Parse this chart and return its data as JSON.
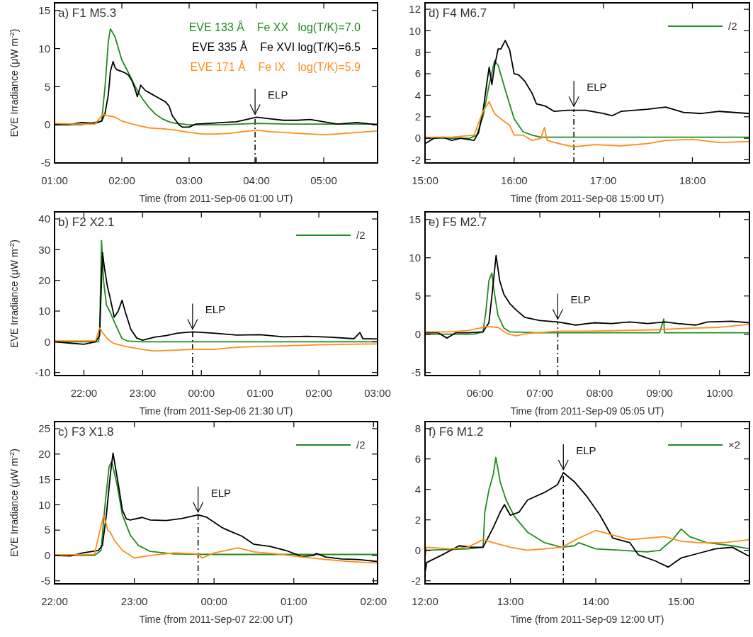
{
  "chart_data": [
    {
      "type": "line",
      "title": "a)  F1 M5.3",
      "xlabel": "Time (from 2011-Sep-06 01:00 UT)",
      "ylabel": "EVE Irradiance (μW m$^{-2}$)",
      "xlim": [
        1,
        5.8
      ],
      "xticks": [
        {
          "value": 1,
          "label": "01:00"
        },
        {
          "value": 2,
          "label": "02:00"
        },
        {
          "value": 3,
          "label": "03:00"
        },
        {
          "value": 4,
          "label": "04:00"
        },
        {
          "value": 5,
          "label": "05:00"
        }
      ],
      "ylim": [
        -5,
        16
      ],
      "yticks": [
        -5,
        0,
        5,
        10,
        15
      ],
      "legend": "top right",
      "grid": false,
      "series": [
        {
          "name": "EVE 133 Å    Fe XX   log(T/K)=7.0",
          "color": "#1e8c1e",
          "x": [
            1,
            1.4,
            1.7,
            1.75,
            1.8,
            1.83,
            1.9,
            2,
            2.1,
            2.2,
            2.3,
            2.4,
            2.5,
            2.6,
            2.7,
            2.8,
            3,
            3.5,
            4,
            4.5,
            5,
            5.8
          ],
          "values": [
            0,
            0,
            0.5,
            5,
            11,
            12.6,
            11.5,
            8.5,
            6.8,
            5,
            3.5,
            2.3,
            1.4,
            0.8,
            0.4,
            0.2,
            0,
            0,
            0.2,
            0.1,
            0.1,
            0.1
          ]
        },
        {
          "name": "EVE 335 Å    Fe XVI log(T/K)=6.5",
          "color": "#000000",
          "x": [
            1,
            1.2,
            1.4,
            1.6,
            1.7,
            1.75,
            1.8,
            1.83,
            1.87,
            1.9,
            1.93,
            2,
            2.05,
            2.1,
            2.15,
            2.2,
            2.23,
            2.28,
            2.35,
            2.45,
            2.55,
            2.65,
            2.7,
            2.75,
            2.8,
            2.85,
            2.9,
            3,
            3.1,
            3.3,
            3.5,
            3.7,
            3.9,
            4,
            4.2,
            4.4,
            4.6,
            4.8,
            5,
            5.2,
            5.5,
            5.8
          ],
          "values": [
            0,
            0,
            0.3,
            0.2,
            0.5,
            1.5,
            4,
            7,
            8.3,
            7.5,
            7.2,
            7,
            6.8,
            6.5,
            5.8,
            4.6,
            3.7,
            5.2,
            4.5,
            4,
            3.5,
            3,
            2.5,
            1.2,
            0.6,
            0,
            -0.3,
            -0.3,
            0.1,
            0.2,
            0.3,
            0.4,
            0.8,
            1,
            0.8,
            0.6,
            0.6,
            0.7,
            0.4,
            0.1,
            0.3,
            0
          ]
        },
        {
          "name": "EVE 171 Å    Fe IX    log(T/K)=5.9",
          "color": "#ff8c1a",
          "x": [
            1,
            1.3,
            1.6,
            1.72,
            1.8,
            1.9,
            2,
            2.2,
            2.4,
            2.6,
            2.8,
            3,
            3.2,
            3.4,
            3.6,
            3.8,
            4,
            4.2,
            4.4,
            4.6,
            4.8,
            5,
            5.2,
            5.5,
            5.8
          ],
          "values": [
            0.2,
            0.1,
            0.1,
            1.4,
            1.2,
            1,
            0.5,
            0,
            -0.4,
            -0.5,
            -0.7,
            -1,
            -1.2,
            -1.2,
            -1.1,
            -0.9,
            -0.7,
            -0.9,
            -1,
            -1.1,
            -1.2,
            -1.3,
            -1.2,
            -1,
            -0.8
          ]
        }
      ],
      "annotations": [
        {
          "text": "ELP",
          "x": 3.98,
          "y": 1.0
        }
      ],
      "ref_lines": [
        {
          "axis": "x",
          "value": 3.98,
          "line_style": "dashed",
          "color": "#000000"
        }
      ]
    },
    {
      "type": "line",
      "title": "d)  F4 M6.7",
      "xlabel": "Time (from 2011-Sep-08 15:00 UT)",
      "xlim": [
        15,
        18.64
      ],
      "xticks": [
        {
          "value": 15,
          "label": "15:00"
        },
        {
          "value": 16,
          "label": "16:00"
        },
        {
          "value": 17,
          "label": "17:00"
        },
        {
          "value": 18,
          "label": "18:00"
        }
      ],
      "ylim": [
        -2.3,
        12.6
      ],
      "yticks": [
        -2,
        0,
        2,
        4,
        6,
        8,
        10,
        12
      ],
      "legend": "top right",
      "grid": false,
      "series": [
        {
          "name": "/2",
          "color": "#1e8c1e",
          "x": [
            15,
            15.5,
            15.58,
            15.65,
            15.72,
            15.78,
            15.82,
            15.9,
            16,
            16.1,
            16.2,
            16.3,
            17,
            18,
            18.64
          ],
          "values": [
            0,
            0,
            0.3,
            2,
            5,
            7.2,
            6.8,
            4.5,
            1.8,
            0.6,
            0.3,
            0.1,
            0.1,
            0.1,
            0.1
          ]
        },
        {
          "color": "#000000",
          "x": [
            15,
            15.1,
            15.2,
            15.3,
            15.4,
            15.55,
            15.6,
            15.65,
            15.7,
            15.72,
            15.75,
            15.78,
            15.82,
            15.85,
            15.9,
            15.95,
            16,
            16.05,
            16.12,
            16.2,
            16.25,
            16.35,
            16.45,
            16.6,
            16.8,
            17,
            17.1,
            17.2,
            17.5,
            17.7,
            17.9,
            18.1,
            18.3,
            18.64
          ],
          "values": [
            -0.5,
            0,
            0.1,
            -0.2,
            0,
            -0.2,
            0.5,
            2.5,
            5.5,
            6.6,
            5,
            6.7,
            8.3,
            8.3,
            9.1,
            8.2,
            6,
            5.9,
            5.3,
            4.2,
            3.2,
            3,
            2.5,
            2.6,
            2.6,
            2.3,
            2.1,
            2.5,
            2.7,
            2.9,
            2.4,
            2.3,
            2.5,
            2.3
          ]
        },
        {
          "color": "#ff8c1a",
          "x": [
            15,
            15.3,
            15.55,
            15.65,
            15.72,
            15.78,
            15.85,
            15.95,
            16,
            16.1,
            16.2,
            16.3,
            16.34,
            16.37,
            16.5,
            16.67,
            16.9,
            17.2,
            17.5,
            17.7,
            18,
            18.3,
            18.64
          ],
          "values": [
            0.1,
            0.1,
            0.3,
            2.5,
            3.4,
            2.3,
            1.8,
            1.2,
            0.3,
            0.3,
            -0.2,
            0,
            1,
            -0.2,
            -0.5,
            -0.8,
            -0.6,
            -0.7,
            -0.5,
            -0.2,
            -0.1,
            -0.4,
            -0.3
          ]
        }
      ],
      "annotations": [
        {
          "text": "ELP",
          "x": 16.67,
          "y": 2.7
        }
      ],
      "ref_lines": [
        {
          "axis": "x",
          "value": 16.67,
          "line_style": "dashed",
          "color": "#000000"
        }
      ]
    },
    {
      "type": "line",
      "title": "b)  F2 X2.1",
      "xlabel": "Time (from 2011-Sep-06 21:30 UT)",
      "ylabel": "EVE Irradiance (μW m$^{-2}$)",
      "xlim": [
        "2011-09-06T21:30",
        "2011-09-07T03:00"
      ],
      "xticks": [
        {
          "value": "2011-09-06T22:00",
          "label": "22:00"
        },
        {
          "value": "2011-09-06T23:00",
          "label": "23:00"
        },
        {
          "value": "2011-09-07T00:00",
          "label": "00:00"
        },
        {
          "value": "2011-09-07T01:00",
          "label": "01:00"
        },
        {
          "value": "2011-09-07T02:00",
          "label": "02:00"
        },
        {
          "value": "2011-09-07T03:00",
          "label": "03:00"
        }
      ],
      "ylim": [
        -11,
        42.3
      ],
      "yticks": [
        -10,
        0,
        10,
        20,
        30,
        40
      ],
      "legend": "top right",
      "grid": false,
      "series": [
        {
          "name": "/2",
          "color": "#1e8c1e",
          "x": [
            "2011-09-06T21:30",
            "2011-09-06T22:06",
            "2011-09-06T22:15",
            "2011-09-06T22:16",
            "2011-09-06T22:18",
            "2011-09-06T22:20",
            "2011-09-06T22:23",
            "2011-09-06T22:27",
            "2011-09-06T22:31",
            "2011-09-06T22:36",
            "2011-09-06T22:39",
            "2011-09-06T22:45",
            "2011-09-06T23:00",
            "2011-09-07T00:00",
            "2011-09-07T03:00"
          ],
          "values": [
            0,
            0,
            0,
            3,
            33,
            20,
            12,
            9.5,
            6.5,
            3,
            1,
            0.2,
            0,
            0,
            0
          ]
        },
        {
          "color": "#000000",
          "x": [
            "2011-09-06T21:30",
            "2011-09-06T21:48",
            "2011-09-06T22:00",
            "2011-09-06T22:12",
            "2011-09-06T22:16",
            "2011-09-06T22:19",
            "2011-09-06T22:21",
            "2011-09-06T22:24",
            "2011-09-06T22:27",
            "2011-09-06T22:31",
            "2011-09-06T22:35",
            "2011-09-06T22:39",
            "2011-09-06T22:42",
            "2011-09-06T22:48",
            "2011-09-06T22:54",
            "2011-09-06T23:00",
            "2011-09-06T23:12",
            "2011-09-06T23:24",
            "2011-09-06T23:36",
            "2011-09-06T23:51",
            "2011-09-07T00:12",
            "2011-09-07T00:36",
            "2011-09-07T01:00",
            "2011-09-07T01:24",
            "2011-09-07T01:48",
            "2011-09-07T02:12",
            "2011-09-07T02:36",
            "2011-09-07T02:42",
            "2011-09-07T02:45",
            "2011-09-07T03:00"
          ],
          "values": [
            0,
            -0.5,
            -0.8,
            0,
            2,
            29,
            24,
            18,
            14,
            8,
            10,
            13.5,
            10,
            4,
            1.2,
            0.5,
            1.5,
            2,
            2.8,
            3.2,
            2.8,
            2.2,
            2.3,
            1.6,
            1.8,
            1.5,
            1,
            3,
            1,
            0.9
          ]
        },
        {
          "color": "#ff8c1a",
          "x": [
            "2011-09-06T21:30",
            "2011-09-06T22:12",
            "2011-09-06T22:16",
            "2011-09-06T22:19",
            "2011-09-06T22:24",
            "2011-09-06T22:30",
            "2011-09-06T22:42",
            "2011-09-06T23:00",
            "2011-09-06T23:12",
            "2011-09-06T23:30",
            "2011-09-06T23:51",
            "2011-09-07T00:12",
            "2011-09-07T00:36",
            "2011-09-07T01:00",
            "2011-09-07T01:30",
            "2011-09-07T02:00",
            "2011-09-07T02:30",
            "2011-09-07T03:00"
          ],
          "values": [
            0.3,
            0.3,
            4.5,
            3,
            1,
            -0.5,
            -1.5,
            -2.5,
            -3,
            -2.8,
            -2.5,
            -2.5,
            -1.8,
            -1.5,
            -1.3,
            -1,
            -0.8,
            -0.7
          ]
        }
      ],
      "annotations": [
        {
          "text": "ELP",
          "x": "2011-09-06T23:51",
          "y": 3.2
        }
      ],
      "ref_lines": [
        {
          "axis": "x",
          "value": "2011-09-06T23:51",
          "line_style": "dashed",
          "color": "#000000"
        }
      ]
    },
    {
      "type": "line",
      "title": "e)  F5 M2.7",
      "xlabel": "Time (from 2011-Sep-09 05:05 UT)",
      "xlim": [
        5.0833,
        10.5
      ],
      "xticks": [
        {
          "value": 6,
          "label": "06:00"
        },
        {
          "value": 7,
          "label": "07:00"
        },
        {
          "value": 8,
          "label": "08:00"
        },
        {
          "value": 9,
          "label": "09:00"
        },
        {
          "value": 10,
          "label": "10:00"
        }
      ],
      "ylim": [
        -5.4,
        16
      ],
      "yticks": [
        -5,
        0,
        5,
        10,
        15
      ],
      "grid": false,
      "series": [
        {
          "color": "#1e8c1e",
          "x": [
            5.0833,
            5.9,
            6.05,
            6.1,
            6.15,
            6.2,
            6.23,
            6.3,
            6.4,
            6.5,
            7,
            8,
            9,
            9.07,
            9.08,
            10.5
          ],
          "values": [
            0,
            0,
            0.3,
            3,
            7,
            8,
            6,
            2.5,
            0.8,
            0.3,
            0.2,
            0.2,
            0.2,
            2,
            0.2,
            0.2
          ]
        },
        {
          "color": "#000000",
          "x": [
            5.0833,
            5.3,
            5.45,
            5.6,
            5.8,
            6.05,
            6.15,
            6.2,
            6.27,
            6.33,
            6.4,
            6.5,
            6.6,
            6.75,
            7,
            7.3,
            7.6,
            7.9,
            8.2,
            8.5,
            8.8,
            9.1,
            9.3,
            9.6,
            9.8,
            10.2,
            10.5
          ],
          "values": [
            0.2,
            0.2,
            -0.5,
            0.2,
            0.2,
            0.3,
            1.5,
            5,
            10.3,
            7,
            5.2,
            4,
            3.2,
            2.2,
            1.8,
            1.6,
            1.2,
            1.5,
            1.4,
            1.6,
            1.4,
            1.6,
            1.4,
            1.2,
            1.6,
            1.7,
            1.5
          ]
        },
        {
          "color": "#ff8c1a",
          "x": [
            5.0833,
            5.5,
            5.8,
            6,
            6.1,
            6.3,
            6.45,
            6.6,
            6.8,
            7.3,
            7.8,
            8.4,
            9,
            9.5,
            10,
            10.5
          ],
          "values": [
            0.3,
            0.3,
            0.5,
            0.8,
            1,
            0.9,
            0.1,
            -0.2,
            0.1,
            0.4,
            0.4,
            0.5,
            0.6,
            0.8,
            0.9,
            1.3
          ]
        }
      ],
      "annotations": [
        {
          "text": "ELP",
          "x": 7.3,
          "y": 1.6
        }
      ],
      "ref_lines": [
        {
          "axis": "x",
          "value": 7.3,
          "line_style": "dashed",
          "color": "#000000"
        }
      ]
    },
    {
      "type": "line",
      "title": "c)  F3 X1.8",
      "xlabel": "Time (from 2011-Sep-07 22:00 UT)",
      "ylabel": "EVE Irradiance (μW m$^{-2}$)",
      "xlim": [
        "2011-09-07T22:00",
        "2011-09-08T02:03"
      ],
      "xticks": [
        {
          "value": "2011-09-07T22:00",
          "label": "22:00"
        },
        {
          "value": "2011-09-07T23:00",
          "label": "23:00"
        },
        {
          "value": "2011-09-08T00:00",
          "label": "00:00"
        },
        {
          "value": "2011-09-08T01:00",
          "label": "01:00"
        },
        {
          "value": "2011-09-08T02:00",
          "label": "02:00"
        }
      ],
      "ylim": [
        -5.6,
        26.4
      ],
      "yticks": [
        -5,
        0,
        5,
        10,
        15,
        20,
        25
      ],
      "legend": "top right",
      "grid": false,
      "series": [
        {
          "name": "/2",
          "color": "#1e8c1e",
          "x": [
            "2011-09-07T22:00",
            "2011-09-07T22:30",
            "2011-09-07T22:35",
            "2011-09-07T22:38",
            "2011-09-07T22:41",
            "2011-09-07T22:43",
            "2011-09-07T22:47",
            "2011-09-07T22:51",
            "2011-09-07T22:57",
            "2011-09-07T23:03",
            "2011-09-07T23:12",
            "2011-09-07T23:30",
            "2011-09-08T00:00",
            "2011-09-08T02:03"
          ],
          "values": [
            0,
            0,
            1,
            10,
            17.5,
            18.5,
            14,
            8,
            4,
            2,
            0.8,
            0.3,
            0.2,
            0.2
          ]
        },
        {
          "color": "#000000",
          "x": [
            "2011-09-07T22:00",
            "2011-09-07T22:12",
            "2011-09-07T22:21",
            "2011-09-07T22:33",
            "2011-09-07T22:36",
            "2011-09-07T22:39",
            "2011-09-07T22:42",
            "2011-09-07T22:44",
            "2011-09-07T22:48",
            "2011-09-07T22:51",
            "2011-09-07T22:54",
            "2011-09-07T22:57",
            "2011-09-07T23:06",
            "2011-09-07T23:12",
            "2011-09-07T23:24",
            "2011-09-07T23:36",
            "2011-09-07T23:48",
            "2011-09-07T23:54",
            "2011-09-08T00:06",
            "2011-09-08T00:12",
            "2011-09-08T00:21",
            "2011-09-08T00:30",
            "2011-09-08T00:42",
            "2011-09-08T00:54",
            "2011-09-08T01:06",
            "2011-09-08T01:15",
            "2011-09-08T01:17",
            "2011-09-08T01:24",
            "2011-09-08T01:36",
            "2011-09-08T01:48",
            "2011-09-08T02:03"
          ],
          "values": [
            0,
            -0.1,
            0.5,
            1,
            2,
            8,
            16,
            20.2,
            14,
            9,
            7.2,
            7,
            7.5,
            7,
            6.9,
            7.3,
            8,
            7.6,
            5.5,
            4.8,
            3.8,
            2.2,
            1.8,
            1,
            -0.2,
            0,
            0.4,
            -0.3,
            -0.7,
            -0.8,
            -1.2
          ]
        },
        {
          "color": "#ff8c1a",
          "x": [
            "2011-09-07T22:00",
            "2011-09-07T22:30",
            "2011-09-07T22:37",
            "2011-09-07T22:40",
            "2011-09-07T22:42",
            "2011-09-07T22:45",
            "2011-09-07T22:51",
            "2011-09-07T23:00",
            "2011-09-07T23:12",
            "2011-09-07T23:30",
            "2011-09-07T23:48",
            "2011-09-07T23:51",
            "2011-09-08T00:00",
            "2011-09-08T00:09",
            "2011-09-08T00:18",
            "2011-09-08T00:30",
            "2011-09-08T00:48",
            "2011-09-08T01:06",
            "2011-09-08T01:24",
            "2011-09-08T01:42",
            "2011-09-08T02:03"
          ],
          "values": [
            0.1,
            0.2,
            8,
            5,
            4.5,
            3,
            1,
            -0.5,
            0,
            0.5,
            0.3,
            -0.5,
            0.5,
            1,
            1.5,
            0.7,
            0.3,
            -0.3,
            -0.8,
            -1.2,
            -1.5
          ]
        }
      ],
      "annotations": [
        {
          "text": "ELP",
          "x": "2011-09-07T23:48",
          "y": 8.0
        }
      ],
      "ref_lines": [
        {
          "axis": "x",
          "value": "2011-09-07T23:48",
          "line_style": "dashed",
          "color": "#000000"
        }
      ]
    },
    {
      "type": "line",
      "title": "f)  F6 M1.2",
      "xlabel": "Time (from 2011-Sep-09 12:00 UT)",
      "xlim": [
        12,
        15.8
      ],
      "xticks": [
        {
          "value": 12,
          "label": "12:00"
        },
        {
          "value": 13,
          "label": "13:00"
        },
        {
          "value": 14,
          "label": "14:00"
        },
        {
          "value": 15,
          "label": "15:00"
        }
      ],
      "ylim": [
        -2.2,
        8.45
      ],
      "yticks": [
        -2,
        0,
        2,
        4,
        6,
        8
      ],
      "legend": "top right",
      "grid": false,
      "series": [
        {
          "name": "×2",
          "color": "#1e8c1e",
          "x": [
            12,
            12.5,
            12.68,
            12.7,
            12.75,
            12.8,
            12.83,
            12.88,
            12.95,
            13.05,
            13.2,
            13.4,
            13.6,
            13.75,
            13.8,
            14,
            14.3,
            14.6,
            14.75,
            14.9,
            15,
            15.1,
            15.3,
            15.6,
            15.8
          ],
          "values": [
            0,
            0.1,
            0.2,
            2.5,
            4,
            5,
            6.1,
            4.5,
            3.3,
            2.2,
            1.2,
            0.5,
            0.2,
            0.3,
            0.5,
            0.1,
            0,
            -0.1,
            0,
            0.7,
            1.4,
            0.9,
            0.5,
            0.3,
            0.1
          ]
        },
        {
          "color": "#000000",
          "x": [
            12,
            12.02,
            12.2,
            12.4,
            12.55,
            12.68,
            12.8,
            12.88,
            12.93,
            13,
            13.1,
            13.2,
            13.4,
            13.55,
            13.62,
            13.75,
            13.9,
            14.05,
            14.2,
            14.4,
            14.5,
            14.7,
            14.85,
            15,
            15.2,
            15.4,
            15.6,
            15.8
          ],
          "values": [
            -1.5,
            -0.8,
            -0.3,
            0.3,
            0.2,
            0.2,
            1.5,
            2.5,
            3,
            2.3,
            2.5,
            3.3,
            3.8,
            4.3,
            5.1,
            4.5,
            3.5,
            2.3,
            0.8,
            0.5,
            -0.3,
            -0.7,
            -1.1,
            -0.5,
            -0.2,
            0.1,
            0.2,
            -0.4
          ]
        },
        {
          "color": "#ff8c1a",
          "x": [
            12,
            12.02,
            12.3,
            12.5,
            12.68,
            12.8,
            13,
            13.2,
            13.4,
            13.6,
            13.8,
            14,
            14.2,
            14.4,
            14.6,
            14.8,
            15,
            15.2,
            15.5,
            15.8
          ],
          "values": [
            -0.5,
            0.2,
            0.1,
            0.2,
            0.7,
            0.5,
            0.2,
            0,
            0.1,
            0.2,
            0.8,
            1.3,
            1,
            0.7,
            0.8,
            0.9,
            0.6,
            0.5,
            0.5,
            0.7
          ]
        }
      ],
      "annotations": [
        {
          "text": "ELP",
          "x": 13.62,
          "y": 5.1
        }
      ],
      "ref_lines": [
        {
          "axis": "x",
          "value": 13.62,
          "line_style": "dashed",
          "color": "#000000"
        }
      ]
    }
  ]
}
